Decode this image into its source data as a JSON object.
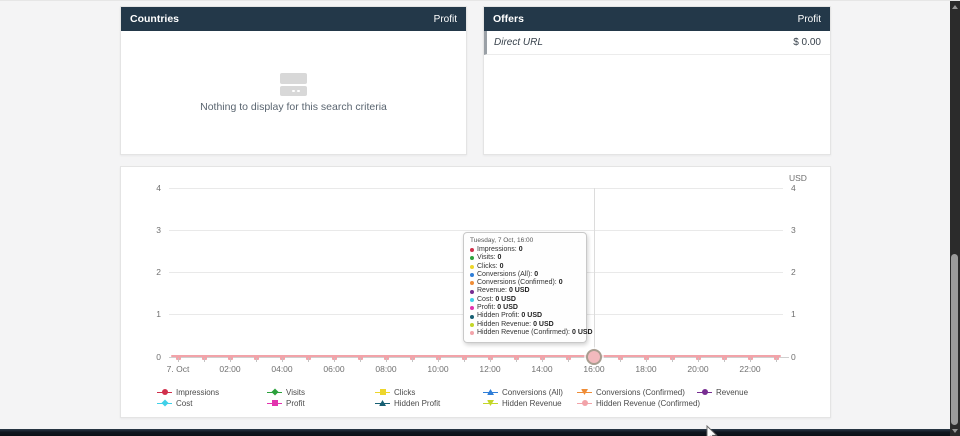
{
  "panels": {
    "countries": {
      "title": "Countries",
      "profit_header": "Profit",
      "empty_text": "Nothing to display for this search criteria"
    },
    "offers": {
      "title": "Offers",
      "profit_header": "Profit",
      "rows": [
        {
          "name": "Direct URL",
          "value": "$ 0.00"
        }
      ]
    }
  },
  "chart": {
    "unit_label": "USD",
    "y_left": [
      "4",
      "3",
      "2",
      "1",
      "0"
    ],
    "y_right": [
      "4",
      "3",
      "2",
      "1",
      "0"
    ],
    "x_ticks": [
      "7. Oct",
      "02:00",
      "04:00",
      "06:00",
      "08:00",
      "10:00",
      "12:00",
      "14:00",
      "16:00",
      "18:00",
      "20:00",
      "22:00"
    ],
    "tooltip": {
      "title": "Tuesday, 7 Oct, 16:00",
      "items": [
        {
          "label": "Impressions:",
          "value": "0",
          "color": "#d02f4b"
        },
        {
          "label": "Visits:",
          "value": "0",
          "color": "#2ca13c"
        },
        {
          "label": "Clicks:",
          "value": "0",
          "color": "#edd62c"
        },
        {
          "label": "Conversions (All):",
          "value": "0",
          "color": "#2f7ed8"
        },
        {
          "label": "Conversions (Confirmed):",
          "value": "0",
          "color": "#ef8d37"
        },
        {
          "label": "Revenue:",
          "value": "0 USD",
          "color": "#772d91"
        },
        {
          "label": "Cost:",
          "value": "0 USD",
          "color": "#40d0e8"
        },
        {
          "label": "Profit:",
          "value": "0 USD",
          "color": "#e234ae"
        },
        {
          "label": "Hidden Profit:",
          "value": "0 USD",
          "color": "#175f73"
        },
        {
          "label": "Hidden Revenue:",
          "value": "0 USD",
          "color": "#c3d628"
        },
        {
          "label": "Hidden Revenue (Confirmed):",
          "value": "0 USD",
          "color": "#f2a3a9"
        }
      ]
    },
    "legend": {
      "items": [
        {
          "label": "Impressions",
          "color": "#d02f4b",
          "marker": "circle-icon"
        },
        {
          "label": "Visits",
          "color": "#2ca13c",
          "marker": "diamond-icon"
        },
        {
          "label": "Clicks",
          "color": "#edd62c",
          "marker": "square-icon"
        },
        {
          "label": "Conversions (All)",
          "color": "#2f7ed8",
          "marker": "triangle-up-icon"
        },
        {
          "label": "Conversions (Confirmed)",
          "color": "#ef8d37",
          "marker": "triangle-down-icon"
        },
        {
          "label": "Revenue",
          "color": "#772d91",
          "marker": "circle-icon"
        },
        {
          "label": "Cost",
          "color": "#40d0e8",
          "marker": "diamond-icon"
        },
        {
          "label": "Profit",
          "color": "#e234ae",
          "marker": "square-icon"
        },
        {
          "label": "Hidden Profit",
          "color": "#175f73",
          "marker": "triangle-up-icon"
        },
        {
          "label": "Hidden Revenue",
          "color": "#c3d628",
          "marker": "triangle-down-icon"
        },
        {
          "label": "Hidden Revenue (Confirmed)",
          "color": "#f2a3a9",
          "marker": "circle-icon"
        }
      ]
    }
  },
  "chart_data": {
    "type": "line",
    "title": "",
    "date": "7. Oct",
    "x": [
      "00:00",
      "01:00",
      "02:00",
      "03:00",
      "04:00",
      "05:00",
      "06:00",
      "07:00",
      "08:00",
      "09:00",
      "10:00",
      "11:00",
      "12:00",
      "13:00",
      "14:00",
      "15:00",
      "16:00",
      "17:00",
      "18:00",
      "19:00",
      "20:00",
      "21:00",
      "22:00",
      "23:00"
    ],
    "series": [
      {
        "name": "Impressions",
        "values": [
          0,
          0,
          0,
          0,
          0,
          0,
          0,
          0,
          0,
          0,
          0,
          0,
          0,
          0,
          0,
          0,
          0,
          0,
          0,
          0,
          0,
          0,
          0,
          0
        ]
      },
      {
        "name": "Visits",
        "values": [
          0,
          0,
          0,
          0,
          0,
          0,
          0,
          0,
          0,
          0,
          0,
          0,
          0,
          0,
          0,
          0,
          0,
          0,
          0,
          0,
          0,
          0,
          0,
          0
        ]
      },
      {
        "name": "Clicks",
        "values": [
          0,
          0,
          0,
          0,
          0,
          0,
          0,
          0,
          0,
          0,
          0,
          0,
          0,
          0,
          0,
          0,
          0,
          0,
          0,
          0,
          0,
          0,
          0,
          0
        ]
      },
      {
        "name": "Conversions (All)",
        "values": [
          0,
          0,
          0,
          0,
          0,
          0,
          0,
          0,
          0,
          0,
          0,
          0,
          0,
          0,
          0,
          0,
          0,
          0,
          0,
          0,
          0,
          0,
          0,
          0
        ]
      },
      {
        "name": "Conversions (Confirmed)",
        "values": [
          0,
          0,
          0,
          0,
          0,
          0,
          0,
          0,
          0,
          0,
          0,
          0,
          0,
          0,
          0,
          0,
          0,
          0,
          0,
          0,
          0,
          0,
          0,
          0
        ]
      },
      {
        "name": "Revenue",
        "values": [
          0,
          0,
          0,
          0,
          0,
          0,
          0,
          0,
          0,
          0,
          0,
          0,
          0,
          0,
          0,
          0,
          0,
          0,
          0,
          0,
          0,
          0,
          0,
          0
        ]
      },
      {
        "name": "Cost",
        "values": [
          0,
          0,
          0,
          0,
          0,
          0,
          0,
          0,
          0,
          0,
          0,
          0,
          0,
          0,
          0,
          0,
          0,
          0,
          0,
          0,
          0,
          0,
          0,
          0
        ]
      },
      {
        "name": "Profit",
        "values": [
          0,
          0,
          0,
          0,
          0,
          0,
          0,
          0,
          0,
          0,
          0,
          0,
          0,
          0,
          0,
          0,
          0,
          0,
          0,
          0,
          0,
          0,
          0,
          0
        ]
      },
      {
        "name": "Hidden Profit",
        "values": [
          0,
          0,
          0,
          0,
          0,
          0,
          0,
          0,
          0,
          0,
          0,
          0,
          0,
          0,
          0,
          0,
          0,
          0,
          0,
          0,
          0,
          0,
          0,
          0
        ]
      },
      {
        "name": "Hidden Revenue",
        "values": [
          0,
          0,
          0,
          0,
          0,
          0,
          0,
          0,
          0,
          0,
          0,
          0,
          0,
          0,
          0,
          0,
          0,
          0,
          0,
          0,
          0,
          0,
          0,
          0
        ]
      },
      {
        "name": "Hidden Revenue (Confirmed)",
        "values": [
          0,
          0,
          0,
          0,
          0,
          0,
          0,
          0,
          0,
          0,
          0,
          0,
          0,
          0,
          0,
          0,
          0,
          0,
          0,
          0,
          0,
          0,
          0,
          0
        ]
      }
    ],
    "ylim": [
      0,
      4
    ],
    "ylabel": "USD",
    "grid": "horizontal",
    "legend_position": "bottom",
    "hovered_point": {
      "series": "all",
      "x": "16:00",
      "tooltip_title": "Tuesday, 7 Oct, 16:00"
    }
  }
}
